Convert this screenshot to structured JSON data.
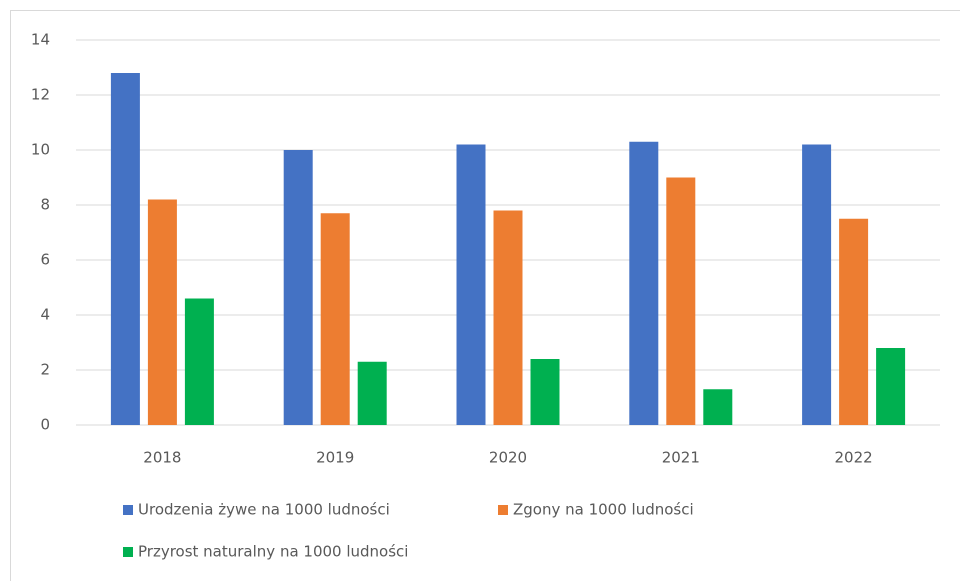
{
  "chart_data": {
    "type": "bar",
    "categories": [
      "2018",
      "2019",
      "2020",
      "2021",
      "2022"
    ],
    "series": [
      {
        "name": "Urodzenia żywe na 1000 ludności",
        "color": "#4472c4",
        "values": [
          12.8,
          10.0,
          10.2,
          10.3,
          10.2
        ]
      },
      {
        "name": "Zgony na 1000 ludności",
        "color": "#ed7d31",
        "values": [
          8.2,
          7.7,
          7.8,
          9.0,
          7.5
        ]
      },
      {
        "name": "Przyrost naturalny na 1000 ludności",
        "color": "#00b050",
        "values": [
          4.6,
          2.3,
          2.4,
          1.3,
          2.8
        ]
      }
    ],
    "ylim": [
      0,
      14
    ],
    "yticks": [
      0,
      2,
      4,
      6,
      8,
      10,
      12,
      14
    ],
    "grid": true,
    "legend": "bottom"
  }
}
